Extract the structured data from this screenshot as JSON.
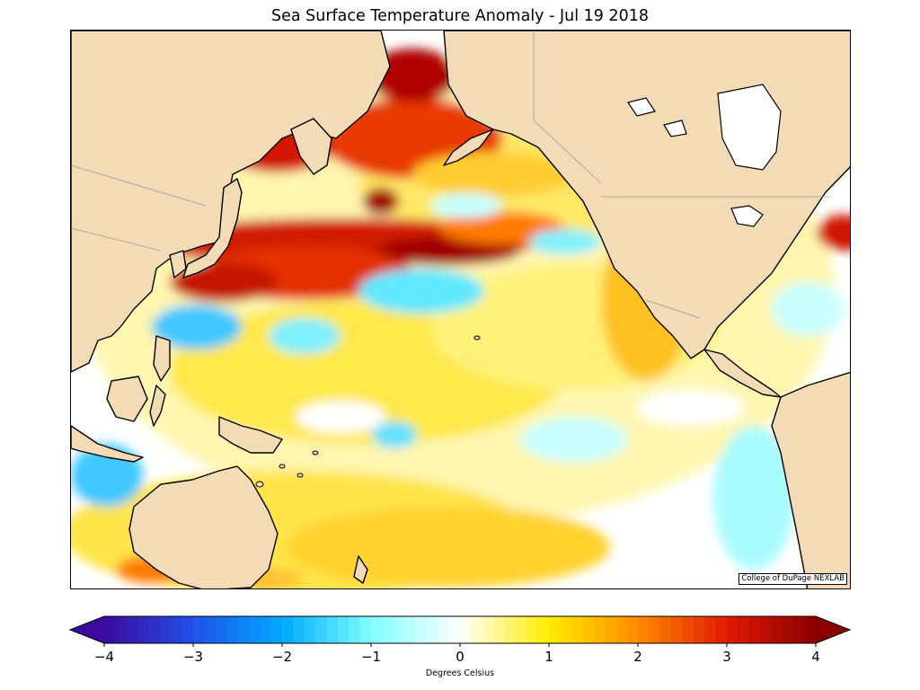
{
  "title": "Sea Surface Temperature Anomaly - Jul 19 2018",
  "credit": "College of DuPage NEXLAB",
  "colorbar": {
    "label": "Degrees Celsius",
    "min": -4,
    "max": 4,
    "ticks": [
      "−4",
      "−3",
      "−2",
      "−1",
      "0",
      "1",
      "2",
      "3",
      "4"
    ],
    "extend": "both",
    "stops": [
      {
        "v": -4,
        "color": "#3a0a9c"
      },
      {
        "v": -3,
        "color": "#2050e8"
      },
      {
        "v": -2,
        "color": "#00aaff"
      },
      {
        "v": -1,
        "color": "#7fffff"
      },
      {
        "v": 0,
        "color": "#ffffff"
      },
      {
        "v": 1,
        "color": "#ffee00"
      },
      {
        "v": 2,
        "color": "#ff8a00"
      },
      {
        "v": 3,
        "color": "#e01a00"
      },
      {
        "v": 4,
        "color": "#8a0000"
      }
    ]
  },
  "colors": {
    "land": "#f3dbb5",
    "coastline": "#000000",
    "borders": "#9a9a9a",
    "ocean_base": "#ffffff"
  }
}
